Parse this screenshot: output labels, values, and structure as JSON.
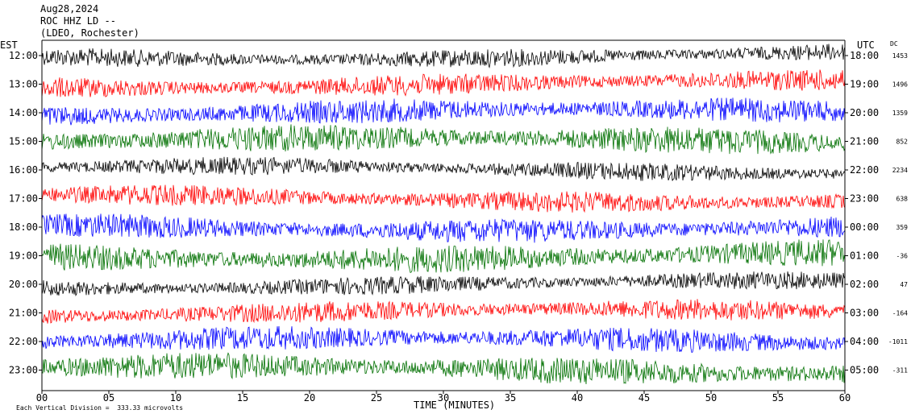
{
  "header": {
    "date": "Aug28,2024",
    "station": "ROC HHZ LD --",
    "location": "(LDEO, Rochester)"
  },
  "left_axis_label": "EST",
  "right_axis_label": "UTC",
  "dc_label": "DC",
  "footer": {
    "x_title": "TIME (MINUTES)",
    "scale_note": "Each Vertical Division =  333.33 microvolts"
  },
  "colors": {
    "black": "#000000",
    "red": "#ff0000",
    "blue": "#0000ff",
    "green": "#007000",
    "cycle": [
      "#000000",
      "#ff0000",
      "#0000ff",
      "#007000"
    ]
  },
  "chart_data": {
    "type": "line",
    "title": "Aug28,2024 ROC HHZ LD -- (LDEO, Rochester)",
    "xlabel": "TIME (MINUTES)",
    "xlim": [
      0,
      60
    ],
    "x_ticks": [
      "00",
      "05",
      "10",
      "15",
      "20",
      "25",
      "30",
      "35",
      "40",
      "45",
      "50",
      "55",
      "60"
    ],
    "grid": false,
    "rows": [
      {
        "est": "12:00",
        "utc": "18:00",
        "dc": "1453",
        "color": "#000000"
      },
      {
        "est": "13:00",
        "utc": "19:00",
        "dc": "1496",
        "color": "#ff0000"
      },
      {
        "est": "14:00",
        "utc": "20:00",
        "dc": "1359",
        "color": "#0000ff"
      },
      {
        "est": "15:00",
        "utc": "21:00",
        "dc": "852",
        "color": "#007000"
      },
      {
        "est": "16:00",
        "utc": "22:00",
        "dc": "2234",
        "color": "#000000"
      },
      {
        "est": "17:00",
        "utc": "23:00",
        "dc": "638",
        "color": "#ff0000"
      },
      {
        "est": "18:00",
        "utc": "00:00",
        "dc": "359",
        "color": "#0000ff"
      },
      {
        "est": "19:00",
        "utc": "01:00",
        "dc": "-36",
        "color": "#007000"
      },
      {
        "est": "20:00",
        "utc": "02:00",
        "dc": "47",
        "color": "#000000"
      },
      {
        "est": "21:00",
        "utc": "03:00",
        "dc": "-164",
        "color": "#ff0000"
      },
      {
        "est": "22:00",
        "utc": "04:00",
        "dc": "-1011",
        "color": "#0000ff"
      },
      {
        "est": "23:00",
        "utc": "05:00",
        "dc": "-311",
        "color": "#007000"
      }
    ]
  }
}
